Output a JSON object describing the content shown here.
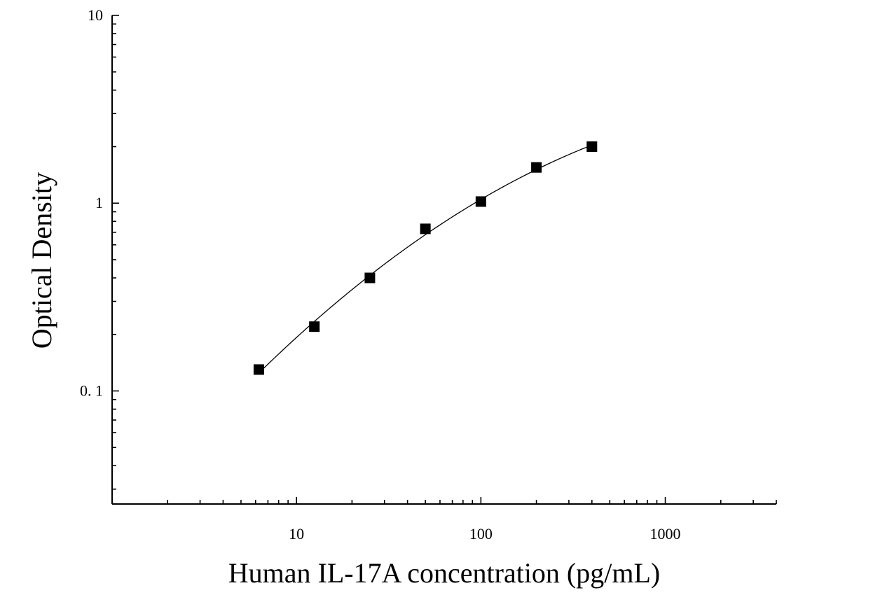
{
  "chart_data": {
    "type": "scatter",
    "title": "",
    "xlabel": "Human IL-17A concentration (pg/mL)",
    "ylabel": "Optical Density",
    "x_scale": "log",
    "y_scale": "log",
    "xlim": [
      1,
      4000
    ],
    "ylim": [
      0.025,
      10
    ],
    "x_tick_labels": [
      {
        "value": 10,
        "label": "10"
      },
      {
        "value": 100,
        "label": "100"
      },
      {
        "value": 1000,
        "label": "1000"
      }
    ],
    "y_tick_labels": [
      {
        "value": 0.1,
        "label": "0. 1"
      },
      {
        "value": 1,
        "label": "1"
      },
      {
        "value": 10,
        "label": "10"
      }
    ],
    "grid": false,
    "legend": false,
    "series": [
      {
        "marker": "square",
        "color": "#000000",
        "fit_curve": true,
        "x": [
          6.25,
          12.5,
          25,
          50,
          100,
          200,
          400
        ],
        "y": [
          0.13,
          0.22,
          0.4,
          0.73,
          1.02,
          1.55,
          2.0
        ]
      }
    ]
  }
}
